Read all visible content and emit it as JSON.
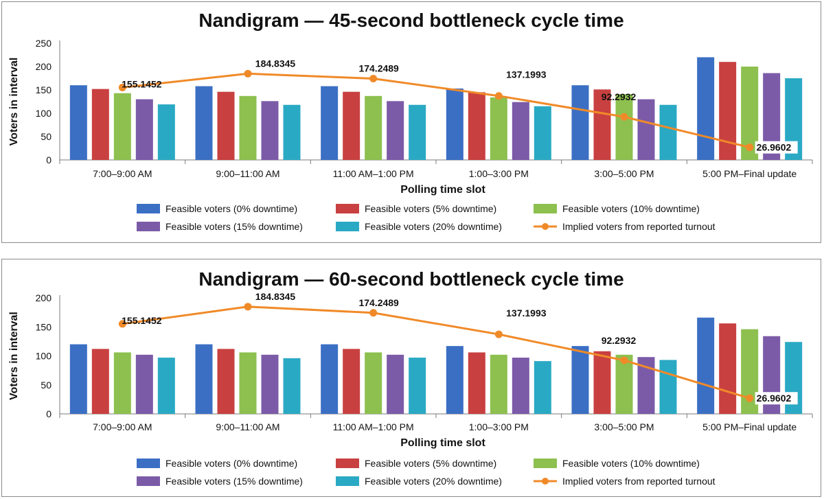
{
  "charts": [
    {
      "type": "bar",
      "title": "Nandigram — 45-second bottleneck cycle time",
      "xlabel": "Polling time slot",
      "ylabel": "Voters in interval",
      "ylim": [
        0,
        250
      ],
      "yticks": [
        0,
        50,
        100,
        150,
        200,
        250
      ],
      "categories": [
        "7:00–9:00 AM",
        "9:00–11:00 AM",
        "11:00 AM–1:00 PM",
        "1:00–3:00 PM",
        "3:00–5:00 PM",
        "5:00 PM–Final update"
      ],
      "grid": false,
      "legend_position": "bottom",
      "series": [
        {
          "name": "Feasible voters (0% downtime)",
          "color": "#3b6fc4",
          "values": [
            160,
            158,
            158,
            153,
            160,
            220
          ]
        },
        {
          "name": "Feasible voters (5% downtime)",
          "color": "#c94040",
          "values": [
            152,
            146,
            146,
            145,
            151,
            210
          ]
        },
        {
          "name": "Feasible voters (10% downtime)",
          "color": "#8dc04f",
          "values": [
            143,
            137,
            137,
            134,
            141,
            200
          ]
        },
        {
          "name": "Feasible voters (15% downtime)",
          "color": "#7b5ba8",
          "values": [
            130,
            126,
            126,
            124,
            130,
            186
          ]
        },
        {
          "name": "Feasible voters (20% downtime)",
          "color": "#2aa9c4",
          "values": [
            119,
            118,
            118,
            115,
            118,
            175
          ]
        }
      ],
      "line_series": {
        "name": "Implied voters from reported turnout",
        "color": "#f08a28",
        "values": [
          155.1452,
          184.8345,
          174.2489,
          137.1993,
          92.2932,
          26.9602
        ],
        "labels": [
          "155.1452",
          "184.8345",
          "174.2489",
          "137.1993",
          "92.2932",
          "26.9602"
        ]
      }
    },
    {
      "type": "bar",
      "title": "Nandigram — 60-second bottleneck cycle time",
      "xlabel": "Polling time slot",
      "ylabel": "Voters in interval",
      "ylim": [
        0,
        200
      ],
      "yticks": [
        0,
        50,
        100,
        150,
        200
      ],
      "categories": [
        "7:00–9:00 AM",
        "9:00–11:00 AM",
        "11:00 AM–1:00 PM",
        "1:00–3:00 PM",
        "3:00–5:00 PM",
        "5:00 PM–Final update"
      ],
      "grid": false,
      "legend_position": "bottom",
      "series": [
        {
          "name": "Feasible voters (0% downtime)",
          "color": "#3b6fc4",
          "values": [
            120,
            120,
            120,
            117,
            117,
            166
          ]
        },
        {
          "name": "Feasible voters (5% downtime)",
          "color": "#c94040",
          "values": [
            112,
            112,
            112,
            106,
            108,
            156
          ]
        },
        {
          "name": "Feasible voters (10% downtime)",
          "color": "#8dc04f",
          "values": [
            106,
            106,
            106,
            102,
            102,
            146
          ]
        },
        {
          "name": "Feasible voters (15% downtime)",
          "color": "#7b5ba8",
          "values": [
            102,
            102,
            102,
            97,
            98,
            134
          ]
        },
        {
          "name": "Feasible voters (20% downtime)",
          "color": "#2aa9c4",
          "values": [
            97,
            96,
            97,
            91,
            93,
            124
          ]
        }
      ],
      "line_series": {
        "name": "Implied voters from reported turnout",
        "color": "#f08a28",
        "values": [
          155.1452,
          184.8345,
          174.2489,
          137.1993,
          92.2932,
          26.9602
        ],
        "labels": [
          "155.1452",
          "184.8345",
          "174.2489",
          "137.1993",
          "92.2932",
          "26.9602"
        ]
      }
    }
  ]
}
